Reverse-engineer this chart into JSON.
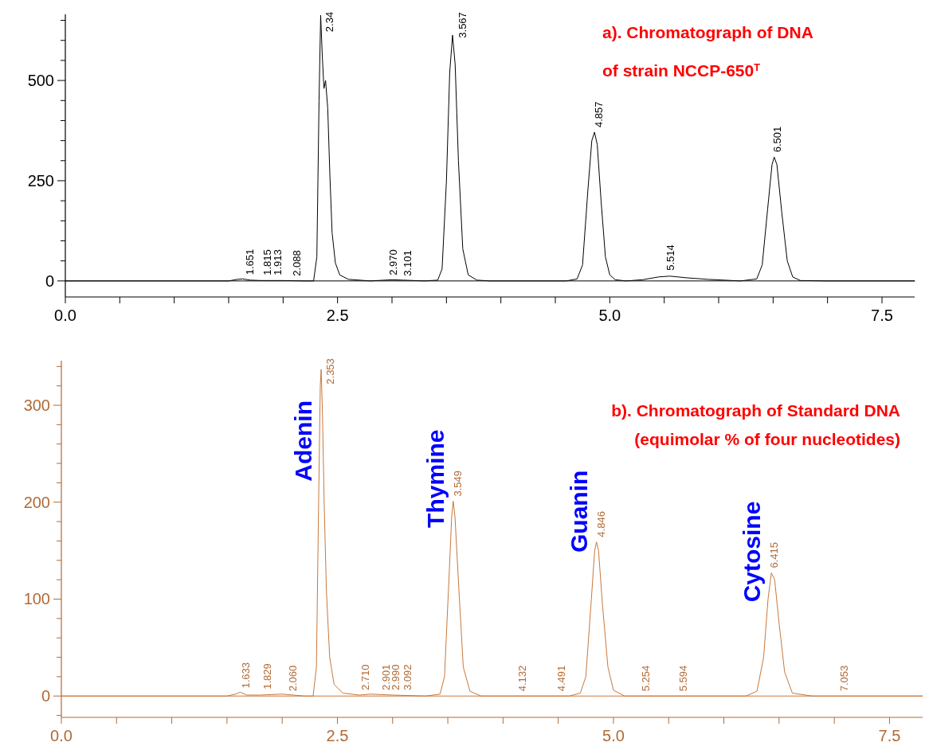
{
  "chart_data": [
    {
      "type": "line",
      "title": "a). Chromatograph of DNA",
      "subtitle": "of strain NCCP-650$^{T}$",
      "xlim": [
        0,
        7.8
      ],
      "ylim": [
        -40,
        665
      ],
      "xticks": [
        {
          "value": 0,
          "label": "0.0"
        },
        {
          "value": 0.5,
          "label": null
        },
        {
          "value": 1,
          "label": null
        },
        {
          "value": 1.5,
          "label": null
        },
        {
          "value": 2,
          "label": null
        },
        {
          "value": 2.5,
          "label": "2.5"
        },
        {
          "value": 3,
          "label": null
        },
        {
          "value": 3.5,
          "label": null
        },
        {
          "value": 4,
          "label": null
        },
        {
          "value": 4.5,
          "label": null
        },
        {
          "value": 5,
          "label": "5.0"
        },
        {
          "value": 5.5,
          "label": null
        },
        {
          "value": 6,
          "label": null
        },
        {
          "value": 6.5,
          "label": null
        },
        {
          "value": 7,
          "label": null
        },
        {
          "value": 7.5,
          "label": "7.5"
        }
      ],
      "yticks": [
        0,
        {
          "value": 50,
          "label": null
        },
        {
          "value": 100,
          "label": null
        },
        {
          "value": 150,
          "label": null
        },
        {
          "value": 200,
          "label": null
        },
        250,
        {
          "value": 300,
          "label": null
        },
        {
          "value": 350,
          "label": null
        },
        {
          "value": 400,
          "label": null
        },
        {
          "value": 450,
          "label": null
        },
        500,
        {
          "value": 550,
          "label": null
        },
        {
          "value": 600,
          "label": null
        },
        {
          "value": 650,
          "label": null
        }
      ],
      "series": [
        {
          "color": "#000000",
          "x": [
            0,
            1.5,
            1.58,
            1.63,
            1.7,
            1.8,
            2.0,
            2.2,
            2.28,
            2.31,
            2.33,
            2.345,
            2.36,
            2.375,
            2.39,
            2.41,
            2.43,
            2.45,
            2.48,
            2.52,
            2.6,
            2.8,
            3.0,
            3.1,
            3.3,
            3.42,
            3.46,
            3.5,
            3.53,
            3.556,
            3.58,
            3.61,
            3.65,
            3.7,
            3.78,
            3.9,
            4.6,
            4.7,
            4.75,
            4.8,
            4.835,
            4.86,
            4.885,
            4.92,
            4.96,
            5.0,
            5.05,
            5.15,
            5.3,
            5.45,
            5.55,
            5.7,
            5.9,
            6.2,
            6.35,
            6.4,
            6.45,
            6.49,
            6.51,
            6.535,
            6.58,
            6.63,
            6.68,
            6.75,
            7.0,
            7.8
          ],
          "values": [
            0,
            0,
            4,
            5,
            2,
            1,
            1,
            0,
            0,
            60,
            450,
            663,
            560,
            480,
            500,
            430,
            260,
            120,
            45,
            15,
            4,
            0,
            3,
            2,
            0,
            2,
            30,
            250,
            520,
            613,
            540,
            300,
            80,
            15,
            2,
            0,
            0,
            5,
            40,
            230,
            350,
            371,
            340,
            200,
            60,
            15,
            3,
            0,
            3,
            10,
            12,
            8,
            4,
            0,
            5,
            40,
            180,
            290,
            309,
            290,
            170,
            50,
            10,
            1,
            0,
            0
          ]
        }
      ],
      "ref_lines": [
        {
          "axis": "y",
          "value": 0,
          "color": "#000000"
        }
      ],
      "annotations": [
        {
          "text": "1.651",
          "x": 1.651,
          "y": 3
        },
        {
          "text": "1.815",
          "x": 1.815,
          "y": 2
        },
        {
          "text": "1.913",
          "x": 1.913,
          "y": 2
        },
        {
          "text": "2.088",
          "x": 2.088,
          "y": 0
        },
        {
          "text": "2.34",
          "x": 2.34,
          "y": 663
        },
        {
          "text": "2.970",
          "x": 2.97,
          "y": 2
        },
        {
          "text": "3.101",
          "x": 3.101,
          "y": 0
        },
        {
          "text": "3.567",
          "x": 3.567,
          "y": 613
        },
        {
          "text": "4.857",
          "x": 4.857,
          "y": 371
        },
        {
          "text": "5.514",
          "x": 5.514,
          "y": 14
        },
        {
          "text": "6.501",
          "x": 6.501,
          "y": 309
        }
      ]
    },
    {
      "type": "line",
      "title": "b). Chromatograph of Standard DNA",
      "subtitle": "(equimolar % of four nucleotides)",
      "xlim": [
        0,
        7.8
      ],
      "ylim": [
        -22,
        346
      ],
      "xticks": [
        {
          "value": 0,
          "label": "0.0"
        },
        {
          "value": 0.5,
          "label": null
        },
        {
          "value": 1,
          "label": null
        },
        {
          "value": 1.5,
          "label": null
        },
        {
          "value": 2,
          "label": null
        },
        {
          "value": 2.5,
          "label": "2.5"
        },
        {
          "value": 3,
          "label": null
        },
        {
          "value": 3.5,
          "label": null
        },
        {
          "value": 4,
          "label": null
        },
        {
          "value": 4.5,
          "label": null
        },
        {
          "value": 5,
          "label": "5.0"
        },
        {
          "value": 5.5,
          "label": null
        },
        {
          "value": 6,
          "label": null
        },
        {
          "value": 6.5,
          "label": null
        },
        {
          "value": 7,
          "label": null
        },
        {
          "value": 7.5,
          "label": "7.5"
        }
      ],
      "yticks": [
        {
          "value": -20,
          "label": null
        },
        0,
        {
          "value": 20,
          "label": null
        },
        {
          "value": 40,
          "label": null
        },
        {
          "value": 60,
          "label": null
        },
        {
          "value": 80,
          "label": null
        },
        100,
        {
          "value": 120,
          "label": null
        },
        {
          "value": 140,
          "label": null
        },
        {
          "value": 160,
          "label": null
        },
        {
          "value": 180,
          "label": null
        },
        200,
        {
          "value": 220,
          "label": null
        },
        {
          "value": 240,
          "label": null
        },
        {
          "value": 260,
          "label": null
        },
        {
          "value": 280,
          "label": null
        },
        300,
        {
          "value": 320,
          "label": null
        },
        {
          "value": 340,
          "label": null
        }
      ],
      "series": [
        {
          "color": "#c8783c",
          "x": [
            0,
            1.5,
            1.58,
            1.62,
            1.68,
            1.8,
            2.0,
            2.1,
            2.2,
            2.28,
            2.31,
            2.33,
            2.345,
            2.353,
            2.365,
            2.38,
            2.4,
            2.43,
            2.47,
            2.55,
            2.7,
            2.8,
            3.0,
            3.3,
            3.43,
            3.47,
            3.51,
            3.535,
            3.549,
            3.565,
            3.6,
            3.64,
            3.7,
            3.8,
            4.6,
            4.7,
            4.75,
            4.8,
            4.83,
            4.846,
            4.865,
            4.9,
            4.95,
            5.0,
            5.1,
            6.2,
            6.3,
            6.36,
            6.4,
            6.43,
            6.46,
            6.5,
            6.55,
            6.62,
            6.8,
            7.8
          ],
          "values": [
            0,
            0,
            2,
            4,
            1,
            1,
            2,
            1,
            0,
            0,
            30,
            200,
            320,
            337,
            290,
            200,
            110,
            40,
            12,
            3,
            1,
            2,
            1,
            0,
            2,
            20,
            120,
            185,
            201,
            185,
            110,
            30,
            5,
            0,
            0,
            3,
            20,
            100,
            150,
            159,
            150,
            95,
            30,
            6,
            0,
            0,
            5,
            40,
            100,
            127,
            120,
            75,
            25,
            3,
            0,
            0
          ]
        }
      ],
      "ref_lines": [
        {
          "axis": "y",
          "value": 0,
          "color": "#c8783c"
        }
      ],
      "annotations": [
        {
          "text": "Adenin",
          "x": 2.353,
          "y": 337
        },
        {
          "text": "Thymine",
          "x": 3.549,
          "y": 201
        },
        {
          "text": "Guanin",
          "x": 4.846,
          "y": 159
        },
        {
          "text": "Cytosine",
          "x": 6.415,
          "y": 127
        },
        {
          "text": "1.633",
          "x": 1.633,
          "y": 3
        },
        {
          "text": "1.829",
          "x": 1.829,
          "y": 2
        },
        {
          "text": "2.060",
          "x": 2.06,
          "y": 0
        },
        {
          "text": "2.353",
          "x": 2.353,
          "y": 337
        },
        {
          "text": "2.710",
          "x": 2.71,
          "y": 1
        },
        {
          "text": "2.901",
          "x": 2.901,
          "y": 1
        },
        {
          "text": "2.990",
          "x": 2.99,
          "y": 1
        },
        {
          "text": "3.092",
          "x": 3.092,
          "y": 1
        },
        {
          "text": "3.549",
          "x": 3.549,
          "y": 201
        },
        {
          "text": "4.132",
          "x": 4.132,
          "y": 0
        },
        {
          "text": "4.491",
          "x": 4.491,
          "y": 0
        },
        {
          "text": "4.846",
          "x": 4.846,
          "y": 159
        },
        {
          "text": "5.254",
          "x": 5.254,
          "y": 0
        },
        {
          "text": "5.594",
          "x": 5.594,
          "y": 0
        },
        {
          "text": "6.415",
          "x": 6.415,
          "y": 127
        },
        {
          "text": "7.053",
          "x": 7.053,
          "y": 0
        }
      ]
    }
  ]
}
